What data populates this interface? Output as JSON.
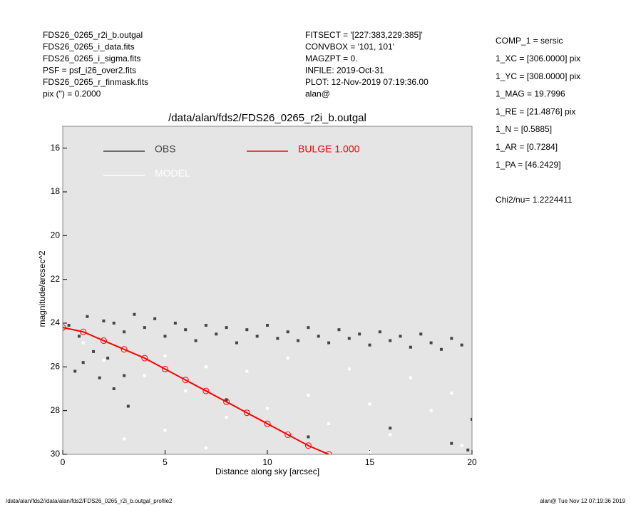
{
  "header_left": [
    "FDS26_0265_r2i_b.outgal",
    "FDS26_0265_i_data.fits",
    "FDS26_0265_i_sigma.fits",
    "PSF     = psf_i26_over2.fits",
    "FDS26_0265_r_finmask.fits",
    "pix (\") =  0.2000"
  ],
  "header_mid": [
    "FITSECT = '[227:383,229:385]'",
    "CONVBOX = '101, 101'",
    "MAGZPT  =                   0.",
    "INFILE: 2019-Oct-31",
    "PLOT: 12-Nov-2019 07:19:36.00",
    "alan@"
  ],
  "params": [
    "COMP_1  = sersic",
    "1_XC    = [306.0000] pix",
    "1_YC    = [308.0000] pix",
    "1_MAG   = 19.7996",
    "1_RE    = [21.4876] pix",
    "1_N     = [0.5885]",
    "1_AR    = [0.7284]",
    "1_PA    = [46.2429]"
  ],
  "chi2": "Chi2/nu=      1.2224411",
  "footer_left": "/data/alan/fds2//data/alan/fds2/FDS26_0265_r2i_b.outgal_profile2",
  "footer_right": "alan@  Tue Nov 12 07:19:36 2019",
  "chart_data": {
    "type": "scatter",
    "title": "/data/alan/fds2/FDS26_0265_r2i_b.outgal",
    "xlabel": "Distance along sky [arcsec]",
    "ylabel": "magnitude/arcsec^2",
    "xlim": [
      0,
      20
    ],
    "ylim": [
      15,
      30
    ],
    "y_inverted": true,
    "xticks": [
      0,
      5,
      10,
      15,
      20
    ],
    "yticks": [
      16,
      18,
      20,
      22,
      24,
      26,
      28,
      30
    ],
    "background": "#e5e5e5",
    "legend": "upper left",
    "series": [
      {
        "name": "OBS",
        "color": "#444444",
        "mode": "markers",
        "x": [
          0.3,
          0.8,
          1.2,
          1.5,
          2.0,
          2.5,
          3.0,
          3.5,
          4.0,
          4.5,
          5.0,
          5.5,
          6.0,
          6.5,
          7.0,
          7.5,
          8.0,
          8.5,
          9.0,
          9.5,
          10.0,
          10.5,
          11.0,
          11.5,
          12.0,
          12.5,
          13.0,
          13.5,
          14.0,
          14.5,
          15.0,
          15.5,
          16.0,
          16.5,
          17.0,
          17.5,
          18.0,
          18.5,
          19.0,
          19.5,
          1.0,
          1.8,
          2.5,
          3.2,
          0.6,
          2.2,
          3.0,
          8.0,
          12.0,
          16.0,
          19.0,
          20.0,
          19.8
        ],
        "values": [
          24.1,
          24.6,
          23.7,
          25.3,
          23.9,
          24.0,
          24.4,
          23.6,
          24.2,
          23.8,
          24.6,
          24.0,
          24.3,
          24.8,
          24.1,
          24.5,
          24.2,
          24.9,
          24.3,
          24.6,
          24.1,
          24.7,
          24.4,
          24.8,
          24.2,
          24.6,
          24.9,
          24.3,
          24.7,
          24.5,
          25.0,
          24.4,
          24.8,
          24.6,
          25.1,
          24.5,
          24.9,
          25.2,
          24.7,
          25.0,
          25.8,
          26.5,
          27.0,
          27.8,
          26.2,
          25.6,
          26.4,
          27.5,
          29.2,
          28.8,
          29.5,
          28.4,
          29.8
        ]
      },
      {
        "name": "MODEL",
        "color": "#ffffff",
        "mode": "markers",
        "x": [
          1,
          2,
          3,
          4,
          5,
          6,
          7,
          8,
          9,
          10,
          11,
          12,
          13,
          14,
          15,
          16,
          17,
          18,
          19,
          19.5,
          5,
          7,
          3,
          15,
          11
        ],
        "values": [
          24.9,
          25.7,
          25.2,
          26.4,
          25.5,
          27.1,
          26.0,
          28.3,
          26.2,
          27.9,
          25.6,
          27.3,
          28.6,
          26.1,
          27.7,
          29.1,
          26.5,
          28.0,
          27.2,
          29.6,
          28.9,
          29.7,
          29.3,
          29.9,
          29.0
        ]
      },
      {
        "name": "BULGE  1.000",
        "color": "#ff0000",
        "mode": "lines",
        "x": [
          0,
          1,
          2,
          3,
          4,
          5,
          6,
          7,
          8,
          9,
          10,
          11,
          12,
          13
        ],
        "values": [
          24.2,
          24.4,
          24.8,
          25.2,
          25.6,
          26.1,
          26.6,
          27.1,
          27.6,
          28.1,
          28.6,
          29.1,
          29.6,
          30.0
        ]
      }
    ]
  }
}
